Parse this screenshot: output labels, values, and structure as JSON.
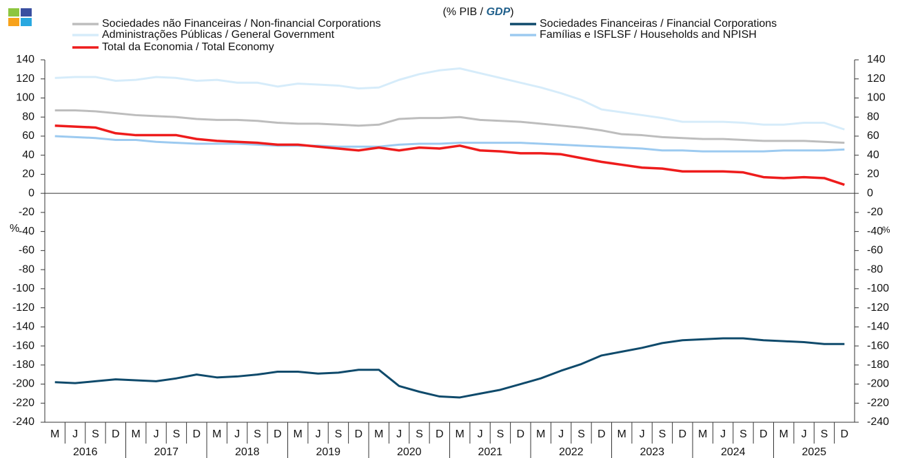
{
  "chart_data": {
    "type": "line",
    "subtitle_parts": [
      "(% PIB / ",
      "GDP",
      ")"
    ],
    "ylabel": "%",
    "y2label": "%",
    "categories": [
      "M",
      "J",
      "S",
      "D",
      "M",
      "J",
      "S",
      "D",
      "M",
      "J",
      "S",
      "D",
      "M",
      "J",
      "S",
      "D",
      "M",
      "J",
      "S",
      "D",
      "M",
      "J",
      "S",
      "D",
      "M",
      "J",
      "S",
      "D",
      "M",
      "J",
      "S",
      "D",
      "M",
      "J",
      "S",
      "D",
      "M",
      "J",
      "S",
      "D"
    ],
    "years": [
      "2016",
      "2017",
      "2018",
      "2019",
      "2020",
      "2021",
      "2022",
      "2023",
      "2024",
      "2025"
    ],
    "ylim": [
      -240,
      140
    ],
    "yticks": [
      -240,
      -220,
      -200,
      -180,
      -160,
      -140,
      -120,
      -100,
      -80,
      -60,
      -40,
      -20,
      0,
      20,
      40,
      60,
      80,
      100,
      120,
      140
    ],
    "y2lim": [
      -240,
      140
    ],
    "y2ticks": [
      -240,
      -220,
      -200,
      -180,
      -160,
      -140,
      -120,
      -100,
      -80,
      -60,
      -40,
      -20,
      0,
      20,
      40,
      60,
      80,
      100,
      120,
      140
    ],
    "series": [
      {
        "name": "Sociedades não Financeiras / Non-financial Corporations",
        "color": "#bdbdbd",
        "values": [
          87,
          87,
          86,
          84,
          82,
          81,
          80,
          78,
          77,
          77,
          76,
          74,
          73,
          73,
          72,
          71,
          72,
          78,
          79,
          79,
          80,
          77,
          76,
          75,
          73,
          71,
          69,
          66,
          62,
          61,
          59,
          58,
          57,
          57,
          56,
          55,
          55,
          55,
          54,
          53
        ]
      },
      {
        "name": "Sociedades Financeiras / Financial Corporations",
        "color": "#0f4a6b",
        "values": [
          -198,
          -199,
          -197,
          -195,
          -196,
          -197,
          -194,
          -190,
          -193,
          -192,
          -190,
          -187,
          -187,
          -189,
          -188,
          -185,
          -185,
          -202,
          -208,
          -213,
          -214,
          -210,
          -206,
          -200,
          -194,
          -186,
          -179,
          -170,
          -166,
          -162,
          -157,
          -154,
          -153,
          -152,
          -152,
          -154,
          -155,
          -156,
          -158,
          -158
        ]
      },
      {
        "name": "Administrações Públicas / General Government",
        "color": "#d6ecfa",
        "values": [
          121,
          122,
          122,
          118,
          119,
          122,
          121,
          118,
          119,
          116,
          116,
          112,
          115,
          114,
          113,
          110,
          111,
          119,
          125,
          129,
          131,
          126,
          121,
          116,
          111,
          105,
          98,
          88,
          85,
          82,
          79,
          75,
          75,
          75,
          74,
          72,
          72,
          74,
          74,
          67
        ]
      },
      {
        "name": "Famílias e ISFLSF / Households and NPISH",
        "color": "#9ccaf0",
        "values": [
          60,
          59,
          58,
          56,
          56,
          54,
          53,
          52,
          52,
          52,
          51,
          50,
          50,
          50,
          49,
          49,
          49,
          51,
          52,
          52,
          53,
          53,
          53,
          53,
          52,
          51,
          50,
          49,
          48,
          47,
          45,
          45,
          44,
          44,
          44,
          44,
          45,
          45,
          45,
          46
        ]
      },
      {
        "name": "Total da Economia / Total Economy",
        "color": "#ee1c1c",
        "values": [
          71,
          70,
          69,
          63,
          61,
          61,
          61,
          57,
          55,
          54,
          53,
          51,
          51,
          49,
          47,
          45,
          48,
          45,
          48,
          47,
          50,
          45,
          44,
          42,
          42,
          41,
          37,
          33,
          30,
          27,
          26,
          23,
          23,
          23,
          22,
          17,
          16,
          17,
          16,
          9
        ]
      }
    ]
  }
}
